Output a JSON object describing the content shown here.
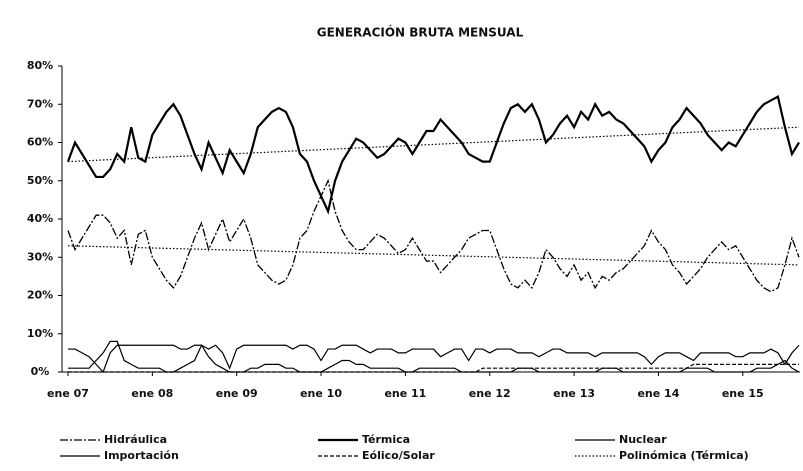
{
  "chart_data": {
    "type": "line",
    "title": "GENERACIÓN BRUTA MENSUAL",
    "categories": [
      "ene 07",
      null,
      null,
      null,
      null,
      null,
      null,
      null,
      null,
      null,
      null,
      null,
      "ene 08",
      null,
      null,
      null,
      null,
      null,
      null,
      null,
      null,
      null,
      null,
      null,
      "ene 09",
      null,
      null,
      null,
      null,
      null,
      null,
      null,
      null,
      null,
      null,
      null,
      "ene 10",
      null,
      null,
      null,
      null,
      null,
      null,
      null,
      null,
      null,
      null,
      null,
      "ene 11",
      null,
      null,
      null,
      null,
      null,
      null,
      null,
      null,
      null,
      null,
      null,
      "ene 12",
      null,
      null,
      null,
      null,
      null,
      null,
      null,
      null,
      null,
      null,
      null,
      "ene 13",
      null,
      null,
      null,
      null,
      null,
      null,
      null,
      null,
      null,
      null,
      null,
      "ene 14",
      null,
      null,
      null,
      null,
      null,
      null,
      null,
      null,
      null,
      null,
      null,
      "ene 15",
      null,
      null,
      null,
      null,
      null,
      null,
      null,
      null
    ],
    "series": [
      {
        "name": "Hidráulica",
        "color": "#000000",
        "line_style": "dash-dot",
        "line_width": 1.3,
        "values": [
          37,
          32,
          35,
          38,
          41,
          41,
          39,
          35,
          37,
          28,
          36,
          37,
          30,
          27,
          24,
          22,
          25,
          30,
          35,
          39,
          32,
          36,
          40,
          34,
          37,
          40,
          35,
          28,
          26,
          24,
          23,
          24,
          28,
          35,
          37,
          42,
          46,
          50,
          42,
          37,
          34,
          32,
          32,
          34,
          36,
          35,
          33,
          31,
          32,
          35,
          32,
          29,
          29,
          26,
          28,
          30,
          32,
          35,
          36,
          37,
          37,
          32,
          27,
          23,
          22,
          24,
          22,
          26,
          32,
          30,
          27,
          25,
          28,
          24,
          26,
          22,
          25,
          24,
          26,
          27,
          29,
          31,
          33,
          37,
          34,
          32,
          28,
          26,
          23,
          25,
          27,
          30,
          32,
          34,
          32,
          33,
          30,
          27,
          24,
          22,
          21,
          22,
          28,
          35,
          30
        ]
      },
      {
        "name": "Térmica",
        "color": "#000000",
        "line_style": "solid",
        "line_width": 2.2,
        "values": [
          55,
          60,
          57,
          54,
          51,
          51,
          53,
          57,
          55,
          64,
          56,
          55,
          62,
          65,
          68,
          70,
          67,
          62,
          57,
          53,
          60,
          56,
          52,
          58,
          55,
          52,
          57,
          64,
          66,
          68,
          69,
          68,
          64,
          57,
          55,
          50,
          46,
          42,
          50,
          55,
          58,
          61,
          60,
          58,
          56,
          57,
          59,
          61,
          60,
          57,
          60,
          63,
          63,
          66,
          64,
          62,
          60,
          57,
          56,
          55,
          55,
          60,
          65,
          69,
          70,
          68,
          70,
          66,
          60,
          62,
          65,
          67,
          64,
          68,
          66,
          70,
          67,
          68,
          66,
          65,
          63,
          61,
          59,
          55,
          58,
          60,
          64,
          66,
          69,
          67,
          65,
          62,
          60,
          58,
          60,
          59,
          62,
          65,
          68,
          70,
          71,
          72,
          64,
          57,
          60
        ]
      },
      {
        "name": "Nuclear",
        "color": "#000000",
        "line_style": "solid",
        "line_width": 1.2,
        "values": [
          6,
          6,
          5,
          4,
          2,
          0,
          5,
          7,
          7,
          7,
          7,
          7,
          7,
          7,
          7,
          7,
          6,
          6,
          7,
          7,
          6,
          7,
          5,
          1,
          6,
          7,
          7,
          7,
          7,
          7,
          7,
          7,
          6,
          7,
          7,
          6,
          3,
          6,
          6,
          7,
          7,
          7,
          6,
          5,
          6,
          6,
          6,
          5,
          5,
          6,
          6,
          6,
          6,
          4,
          5,
          6,
          6,
          3,
          6,
          6,
          5,
          6,
          6,
          6,
          5,
          5,
          5,
          4,
          5,
          6,
          6,
          5,
          5,
          5,
          5,
          4,
          5,
          5,
          5,
          5,
          5,
          5,
          4,
          2,
          4,
          5,
          5,
          5,
          4,
          3,
          5,
          5,
          5,
          5,
          5,
          4,
          4,
          5,
          5,
          5,
          6,
          5,
          2,
          5,
          7
        ]
      },
      {
        "name": "Importación",
        "color": "#000000",
        "line_style": "solid",
        "line_width": 1.2,
        "values": [
          1,
          1,
          1,
          1,
          3,
          5,
          8,
          8,
          3,
          2,
          1,
          1,
          1,
          1,
          0,
          0,
          1,
          2,
          3,
          7,
          4,
          2,
          1,
          0,
          0,
          0,
          1,
          1,
          2,
          2,
          2,
          1,
          1,
          0,
          0,
          0,
          0,
          1,
          2,
          3,
          3,
          2,
          2,
          1,
          1,
          1,
          1,
          1,
          0,
          0,
          1,
          1,
          1,
          1,
          1,
          1,
          0,
          0,
          0,
          0,
          0,
          0,
          0,
          0,
          1,
          1,
          1,
          0,
          0,
          0,
          0,
          0,
          0,
          0,
          0,
          0,
          1,
          1,
          1,
          0,
          0,
          0,
          0,
          0,
          0,
          0,
          0,
          0,
          1,
          1,
          1,
          1,
          0,
          0,
          0,
          0,
          0,
          0,
          1,
          1,
          1,
          2,
          3,
          1,
          0
        ]
      },
      {
        "name": "Eólico/Solar",
        "color": "#000000",
        "line_style": "dashed",
        "line_width": 1.2,
        "values": [
          0,
          0,
          0,
          0,
          0,
          0,
          0,
          0,
          0,
          0,
          0,
          0,
          0,
          0,
          0,
          0,
          0,
          0,
          0,
          0,
          0,
          0,
          0,
          0,
          0,
          0,
          0,
          0,
          0,
          0,
          0,
          0,
          0,
          0,
          0,
          0,
          0,
          0,
          0,
          0,
          0,
          0,
          0,
          0,
          0,
          0,
          0,
          0,
          0,
          0,
          0,
          0,
          0,
          0,
          0,
          0,
          0,
          0,
          0,
          1,
          1,
          1,
          1,
          1,
          1,
          1,
          1,
          1,
          1,
          1,
          1,
          1,
          1,
          1,
          1,
          1,
          1,
          1,
          1,
          1,
          1,
          1,
          1,
          1,
          1,
          1,
          1,
          1,
          1,
          2,
          2,
          2,
          2,
          2,
          2,
          2,
          2,
          2,
          2,
          2,
          2,
          2,
          2,
          2,
          2
        ]
      }
    ],
    "trendlines": [
      {
        "name": "Polinómica (Térmica)",
        "color": "#000000",
        "line_style": "dotted",
        "start": 55,
        "end": 64
      },
      {
        "color": "#000000",
        "line_style": "dotted",
        "start": 33,
        "end": 28
      }
    ],
    "ylim": [
      0,
      80
    ],
    "yticks": [
      {
        "value": 0,
        "label": "0%"
      },
      {
        "value": 10,
        "label": "10%"
      },
      {
        "value": 20,
        "label": "20%"
      },
      {
        "value": 30,
        "label": "30%"
      },
      {
        "value": 40,
        "label": "40%"
      },
      {
        "value": 50,
        "label": "50%"
      },
      {
        "value": 60,
        "label": "60%"
      },
      {
        "value": 70,
        "label": "70%"
      },
      {
        "value": 80,
        "label": "80%"
      }
    ],
    "grid": false,
    "legend": "bottom"
  }
}
